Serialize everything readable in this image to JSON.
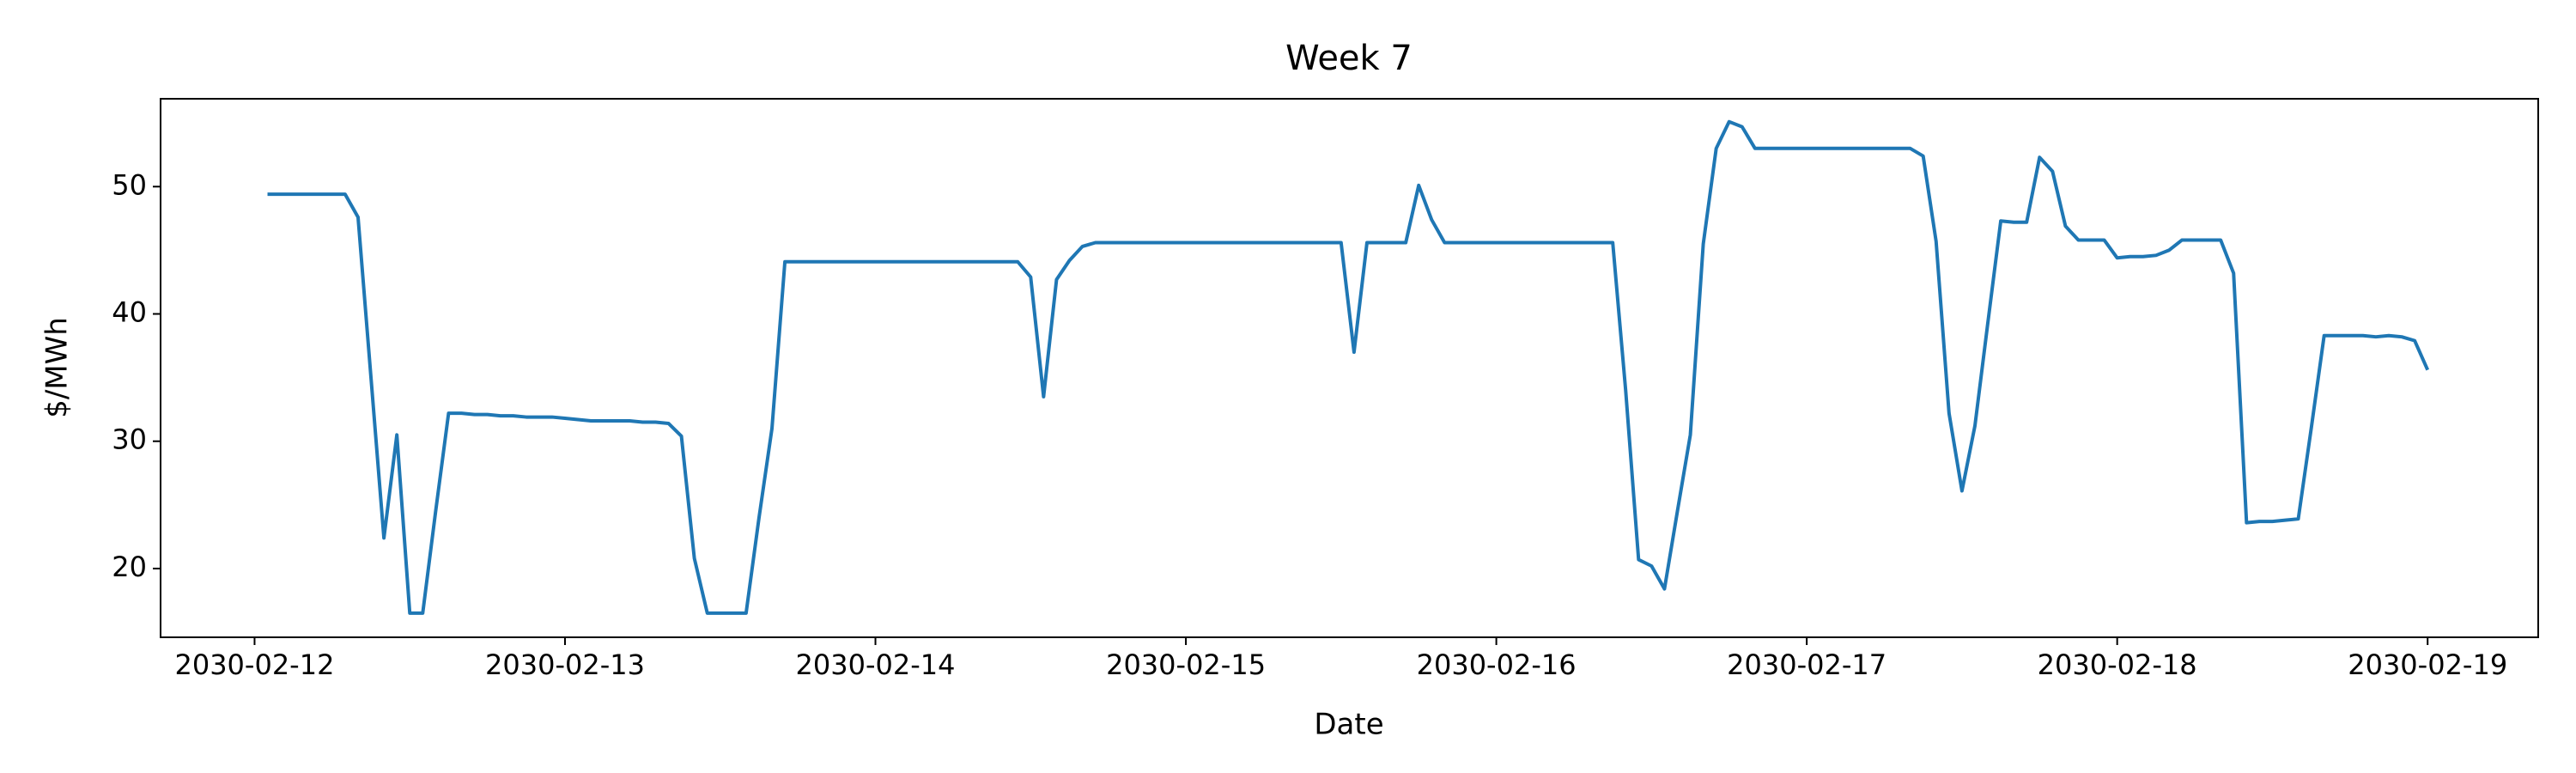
{
  "chart_data": {
    "type": "line",
    "title": "Week 7",
    "x_label": "Date",
    "y_label": "$/MWh",
    "x": [
      "2030-02-12 01:00",
      "2030-02-12 02:00",
      "2030-02-12 03:00",
      "2030-02-12 04:00",
      "2030-02-12 05:00",
      "2030-02-12 06:00",
      "2030-02-12 07:00",
      "2030-02-12 08:00",
      "2030-02-12 09:00",
      "2030-02-12 10:00",
      "2030-02-12 11:00",
      "2030-02-12 12:00",
      "2030-02-12 13:00",
      "2030-02-12 14:00",
      "2030-02-12 15:00",
      "2030-02-12 16:00",
      "2030-02-12 17:00",
      "2030-02-12 18:00",
      "2030-02-12 19:00",
      "2030-02-12 20:00",
      "2030-02-12 21:00",
      "2030-02-12 22:00",
      "2030-02-12 23:00",
      "2030-02-13 00:00",
      "2030-02-13 01:00",
      "2030-02-13 02:00",
      "2030-02-13 03:00",
      "2030-02-13 04:00",
      "2030-02-13 05:00",
      "2030-02-13 06:00",
      "2030-02-13 07:00",
      "2030-02-13 08:00",
      "2030-02-13 09:00",
      "2030-02-13 10:00",
      "2030-02-13 11:00",
      "2030-02-13 12:00",
      "2030-02-13 13:00",
      "2030-02-13 14:00",
      "2030-02-13 15:00",
      "2030-02-13 16:00",
      "2030-02-13 17:00",
      "2030-02-13 18:00",
      "2030-02-13 19:00",
      "2030-02-13 20:00",
      "2030-02-13 21:00",
      "2030-02-13 22:00",
      "2030-02-13 23:00",
      "2030-02-14 00:00",
      "2030-02-14 01:00",
      "2030-02-14 02:00",
      "2030-02-14 03:00",
      "2030-02-14 04:00",
      "2030-02-14 05:00",
      "2030-02-14 06:00",
      "2030-02-14 07:00",
      "2030-02-14 08:00",
      "2030-02-14 09:00",
      "2030-02-14 10:00",
      "2030-02-14 11:00",
      "2030-02-14 12:00",
      "2030-02-14 13:00",
      "2030-02-14 14:00",
      "2030-02-14 15:00",
      "2030-02-14 16:00",
      "2030-02-14 17:00",
      "2030-02-14 18:00",
      "2030-02-14 19:00",
      "2030-02-14 20:00",
      "2030-02-14 21:00",
      "2030-02-14 22:00",
      "2030-02-14 23:00",
      "2030-02-15 00:00",
      "2030-02-15 01:00",
      "2030-02-15 02:00",
      "2030-02-15 03:00",
      "2030-02-15 04:00",
      "2030-02-15 05:00",
      "2030-02-15 06:00",
      "2030-02-15 07:00",
      "2030-02-15 08:00",
      "2030-02-15 09:00",
      "2030-02-15 10:00",
      "2030-02-15 11:00",
      "2030-02-15 12:00",
      "2030-02-15 13:00",
      "2030-02-15 14:00",
      "2030-02-15 15:00",
      "2030-02-15 16:00",
      "2030-02-15 17:00",
      "2030-02-15 18:00",
      "2030-02-15 19:00",
      "2030-02-15 20:00",
      "2030-02-15 21:00",
      "2030-02-15 22:00",
      "2030-02-15 23:00",
      "2030-02-16 00:00",
      "2030-02-16 01:00",
      "2030-02-16 02:00",
      "2030-02-16 03:00",
      "2030-02-16 04:00",
      "2030-02-16 05:00",
      "2030-02-16 06:00",
      "2030-02-16 07:00",
      "2030-02-16 08:00",
      "2030-02-16 09:00",
      "2030-02-16 10:00",
      "2030-02-16 11:00",
      "2030-02-16 12:00",
      "2030-02-16 13:00",
      "2030-02-16 14:00",
      "2030-02-16 15:00",
      "2030-02-16 16:00",
      "2030-02-16 17:00",
      "2030-02-16 18:00",
      "2030-02-16 19:00",
      "2030-02-16 20:00",
      "2030-02-16 21:00",
      "2030-02-16 22:00",
      "2030-02-16 23:00",
      "2030-02-17 00:00",
      "2030-02-17 01:00",
      "2030-02-17 02:00",
      "2030-02-17 03:00",
      "2030-02-17 04:00",
      "2030-02-17 05:00",
      "2030-02-17 06:00",
      "2030-02-17 07:00",
      "2030-02-17 08:00",
      "2030-02-17 09:00",
      "2030-02-17 10:00",
      "2030-02-17 11:00",
      "2030-02-17 12:00",
      "2030-02-17 13:00",
      "2030-02-17 14:00",
      "2030-02-17 15:00",
      "2030-02-17 16:00",
      "2030-02-17 17:00",
      "2030-02-17 18:00",
      "2030-02-17 19:00",
      "2030-02-17 20:00",
      "2030-02-17 21:00",
      "2030-02-17 22:00",
      "2030-02-17 23:00",
      "2030-02-18 00:00",
      "2030-02-18 01:00",
      "2030-02-18 02:00",
      "2030-02-18 03:00",
      "2030-02-18 04:00",
      "2030-02-18 05:00",
      "2030-02-18 06:00",
      "2030-02-18 07:00",
      "2030-02-18 08:00",
      "2030-02-18 09:00",
      "2030-02-18 10:00",
      "2030-02-18 11:00",
      "2030-02-18 12:00",
      "2030-02-18 13:00",
      "2030-02-18 14:00",
      "2030-02-18 15:00",
      "2030-02-18 16:00",
      "2030-02-18 17:00",
      "2030-02-18 18:00",
      "2030-02-18 19:00",
      "2030-02-18 20:00",
      "2030-02-18 21:00",
      "2030-02-18 22:00",
      "2030-02-18 23:00",
      "2030-02-19 00:00"
    ],
    "series": [
      {
        "color": "#1f77b4",
        "values": [
          49.4,
          49.4,
          49.4,
          49.4,
          49.4,
          49.4,
          49.4,
          47.6,
          35.0,
          22.4,
          30.5,
          16.5,
          16.5,
          24.5,
          32.2,
          32.2,
          32.1,
          32.1,
          32.0,
          32.0,
          31.9,
          31.9,
          31.9,
          31.8,
          31.7,
          31.6,
          31.6,
          31.6,
          31.6,
          31.5,
          31.5,
          31.4,
          30.4,
          20.8,
          16.5,
          16.5,
          16.5,
          16.5,
          24.0,
          31.0,
          44.1,
          44.1,
          44.1,
          44.1,
          44.1,
          44.1,
          44.1,
          44.1,
          44.1,
          44.1,
          44.1,
          44.1,
          44.1,
          44.1,
          44.1,
          44.1,
          44.1,
          44.1,
          44.1,
          42.9,
          33.5,
          42.7,
          44.2,
          45.3,
          45.6,
          45.6,
          45.6,
          45.6,
          45.6,
          45.6,
          45.6,
          45.6,
          45.6,
          45.6,
          45.6,
          45.6,
          45.6,
          45.6,
          45.6,
          45.6,
          45.6,
          45.6,
          45.6,
          45.6,
          37.0,
          45.6,
          45.6,
          45.6,
          45.6,
          50.1,
          47.4,
          45.6,
          45.6,
          45.6,
          45.6,
          45.6,
          45.6,
          45.6,
          45.6,
          45.6,
          45.6,
          45.6,
          45.6,
          45.6,
          45.6,
          34.0,
          20.7,
          20.2,
          18.4,
          24.5,
          30.5,
          45.5,
          53.0,
          55.1,
          54.7,
          53.0,
          53.0,
          53.0,
          53.0,
          53.0,
          53.0,
          53.0,
          53.0,
          53.0,
          53.0,
          53.0,
          53.0,
          53.0,
          52.4,
          45.7,
          32.2,
          26.1,
          31.2,
          39.3,
          47.3,
          47.2,
          47.2,
          52.3,
          51.2,
          46.9,
          45.8,
          45.8,
          45.8,
          44.4,
          44.5,
          44.5,
          44.6,
          45.0,
          45.8,
          45.8,
          45.8,
          45.8,
          43.2,
          23.6,
          23.7,
          23.7,
          23.8,
          23.9,
          31.0,
          38.3,
          38.3,
          38.3,
          38.3,
          38.2,
          38.3,
          38.2,
          37.9,
          35.6
        ]
      }
    ],
    "xlim": [
      "2030-02-11 16:44",
      "2030-02-19 08:33"
    ],
    "xticks": [
      "2030-02-12",
      "2030-02-13",
      "2030-02-14",
      "2030-02-15",
      "2030-02-16",
      "2030-02-17",
      "2030-02-18",
      "2030-02-19"
    ],
    "ylim": [
      14.6,
      56.9
    ],
    "yticks": [
      20,
      30,
      40,
      50
    ],
    "grid": false
  }
}
